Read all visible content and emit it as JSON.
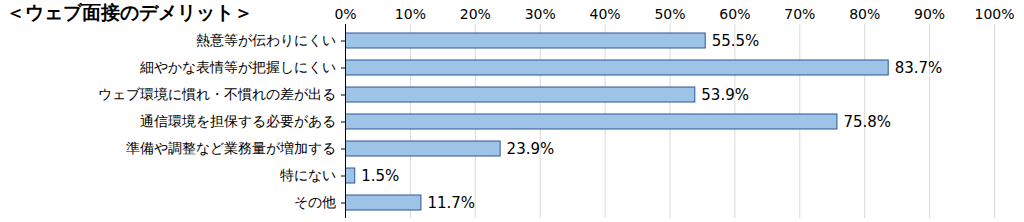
{
  "chart_data": {
    "type": "bar",
    "orientation": "horizontal",
    "title": "＜ウェブ面接のデメリット＞",
    "categories": [
      "熱意等が伝わりにくい",
      "細やかな表情等が把握しにくい",
      "ウェブ環境に慣れ・不慣れの差が出る",
      "通信環境を担保する必要がある",
      "準備や調整など業務量が増加する",
      "特にない",
      "その他"
    ],
    "values": [
      55.5,
      83.7,
      53.9,
      75.8,
      23.9,
      1.5,
      11.7
    ],
    "value_labels": [
      "55.5%",
      "83.7%",
      "53.9%",
      "75.8%",
      "23.9%",
      "1.5%",
      "11.7%"
    ],
    "data_labels": true,
    "color": "#9dc3e6",
    "xlim": [
      0,
      100
    ],
    "xticks": [
      {
        "value": 0,
        "label": "0%"
      },
      {
        "value": 10,
        "label": "10%"
      },
      {
        "value": 20,
        "label": "20%"
      },
      {
        "value": 30,
        "label": "30%"
      },
      {
        "value": 40,
        "label": "40%"
      },
      {
        "value": 50,
        "label": "50%"
      },
      {
        "value": 60,
        "label": "60%"
      },
      {
        "value": 70,
        "label": "70%"
      },
      {
        "value": 80,
        "label": "80%"
      },
      {
        "value": 90,
        "label": "90%"
      },
      {
        "value": 100,
        "label": "100%"
      }
    ],
    "grid": true
  }
}
